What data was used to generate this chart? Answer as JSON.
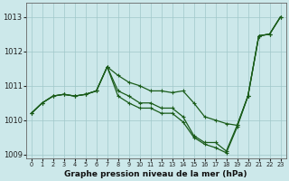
{
  "title": "Graphe pression niveau de la mer (hPa)",
  "background_color": "#cce8ea",
  "line_color": "#1a5c1a",
  "grid_color": "#a0c8ca",
  "x": [
    0,
    1,
    2,
    3,
    4,
    5,
    6,
    7,
    8,
    9,
    10,
    11,
    12,
    13,
    14,
    15,
    16,
    17,
    18,
    19,
    20,
    21,
    22,
    23
  ],
  "s1": [
    1010.2,
    1010.5,
    1010.7,
    1010.75,
    1010.7,
    1010.75,
    1010.85,
    1011.55,
    1011.3,
    1011.1,
    1011.0,
    1010.85,
    1010.85,
    1010.8,
    1010.85,
    1010.5,
    1010.1,
    1010.0,
    1009.9,
    1009.85,
    1010.7,
    1012.45,
    1012.5,
    1013.0
  ],
  "s2": [
    1010.2,
    1010.5,
    1010.7,
    1010.75,
    1010.7,
    1010.75,
    1010.85,
    1011.55,
    1010.85,
    1010.7,
    1010.5,
    1010.5,
    1010.35,
    1010.35,
    1010.1,
    1009.55,
    1009.35,
    1009.35,
    1009.1,
    1009.85,
    1010.7,
    1012.45,
    1012.5,
    1013.0
  ],
  "s3": [
    1010.2,
    1010.5,
    1010.7,
    1010.75,
    1010.7,
    1010.75,
    1010.85,
    1011.55,
    1010.7,
    1010.5,
    1010.35,
    1010.35,
    1010.2,
    1010.2,
    1009.95,
    1009.5,
    1009.3,
    1009.2,
    1009.05,
    1009.8,
    1010.7,
    1012.45,
    1012.5,
    1013.0
  ],
  "ylim": [
    1008.9,
    1013.4
  ],
  "yticks": [
    1009,
    1010,
    1011,
    1012,
    1013
  ],
  "xticks": [
    0,
    1,
    2,
    3,
    4,
    5,
    6,
    7,
    8,
    9,
    10,
    11,
    12,
    13,
    14,
    15,
    16,
    17,
    18,
    19,
    20,
    21,
    22,
    23
  ]
}
